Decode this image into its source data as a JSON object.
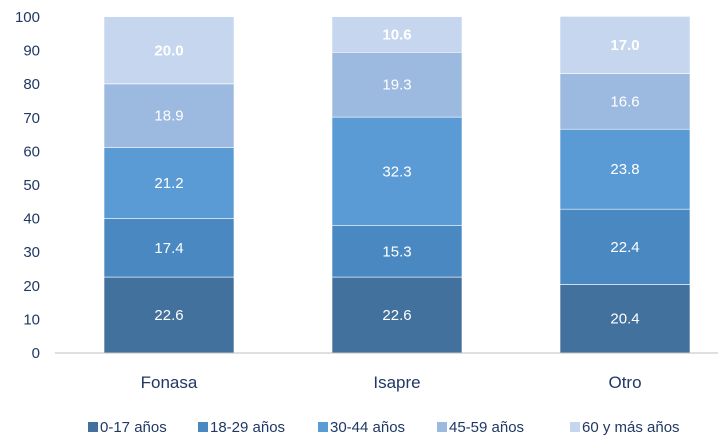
{
  "chart_data": {
    "type": "bar",
    "stacked": true,
    "categories": [
      "Fonasa",
      "Isapre",
      "Otro"
    ],
    "series": [
      {
        "name": "0-17 años",
        "values": [
          22.6,
          22.6,
          20.4
        ],
        "color": "#41719c"
      },
      {
        "name": "18-29 años",
        "values": [
          17.4,
          15.3,
          22.4
        ],
        "color": "#4a88c2"
      },
      {
        "name": "30-44 años",
        "values": [
          21.2,
          32.3,
          23.8
        ],
        "color": "#5b9bd5"
      },
      {
        "name": "45-59 años",
        "values": [
          18.9,
          19.3,
          16.6
        ],
        "color": "#9cb9e0"
      },
      {
        "name": "60 y más años",
        "values": [
          20.0,
          10.6,
          17.0
        ],
        "color": "#c5d6ee"
      }
    ],
    "data_labels": [
      [
        "22.6",
        "22.6",
        "20.4"
      ],
      [
        "17.4",
        "15.3",
        "22.4"
      ],
      [
        "21.2",
        "32.3",
        "23.8"
      ],
      [
        "18.9",
        "19.3",
        "16.6"
      ],
      [
        "20.0",
        "10.6",
        "17.0"
      ]
    ],
    "ylim": [
      0,
      100
    ],
    "yticks": [
      "0",
      "10",
      "20",
      "30",
      "40",
      "50",
      "60",
      "70",
      "80",
      "90",
      "100"
    ],
    "grid": false,
    "legend_position": "bottom",
    "title": "",
    "xlabel": "",
    "ylabel": ""
  }
}
